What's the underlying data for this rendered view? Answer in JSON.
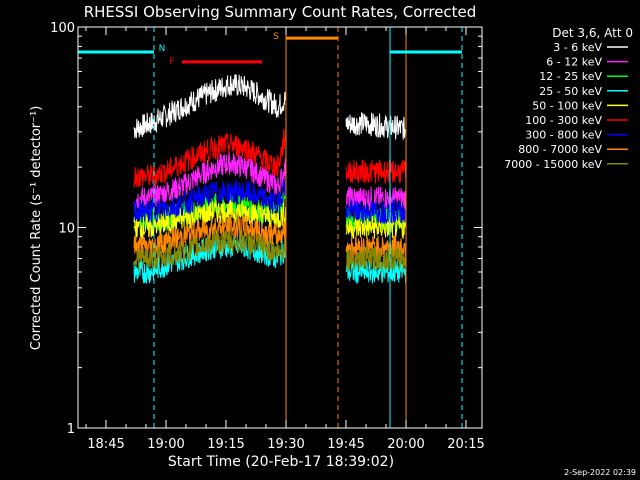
{
  "chart_data": {
    "type": "line",
    "title": "RHESSI Observing Summary Count Rates, Corrected",
    "ylabel": "Corrected Count Rate (s⁻¹ detector⁻¹)",
    "xlabel": "Start Time (20-Feb-17 18:39:02)",
    "y_scale": "log",
    "ylim": [
      1,
      100
    ],
    "xlim": [
      "18:38",
      "20:19"
    ],
    "ytick_labels": [
      "1",
      "10",
      "100"
    ],
    "xtick_labels": [
      "18:45",
      "19:00",
      "19:15",
      "19:30",
      "19:45",
      "20:00",
      "20:15"
    ],
    "legend_title": "Det 3,6, Att 0",
    "legend_position": "top-right",
    "footer": "2-Sep-2022 02:39",
    "data_segments": [
      [
        "18:52",
        "19:30"
      ],
      [
        "19:45",
        "20:00"
      ]
    ],
    "series": [
      {
        "name": "3 - 6 keV",
        "color": "#ffffff",
        "x": [
          "18:52",
          "18:56",
          "19:00",
          "19:04",
          "19:08",
          "19:12",
          "19:16",
          "19:20",
          "19:24",
          "19:28",
          "19:30",
          "19:45",
          "19:50",
          "19:55",
          "20:00"
        ],
        "values": [
          31,
          33,
          36,
          40,
          44,
          48,
          52,
          50,
          45,
          40,
          44,
          33,
          33,
          32,
          31
        ]
      },
      {
        "name": "6 - 12 keV",
        "color": "#ff22ff",
        "x": [
          "18:52",
          "18:56",
          "19:00",
          "19:04",
          "19:08",
          "19:12",
          "19:16",
          "19:20",
          "19:24",
          "19:28",
          "19:30",
          "19:45",
          "19:50",
          "19:55",
          "20:00"
        ],
        "values": [
          14,
          14,
          15,
          16,
          18,
          20,
          21,
          20,
          18,
          16,
          20,
          14,
          14,
          14,
          14
        ]
      },
      {
        "name": "12 - 25 keV",
        "color": "#00ff00",
        "x": [
          "18:52",
          "18:56",
          "19:00",
          "19:04",
          "19:08",
          "19:12",
          "19:16",
          "19:20",
          "19:24",
          "19:28",
          "19:30",
          "19:45",
          "19:50",
          "19:55",
          "20:00"
        ],
        "values": [
          11,
          11,
          11,
          12,
          12,
          13,
          13,
          13,
          12,
          12,
          15,
          11,
          11,
          11,
          11
        ]
      },
      {
        "name": "25 - 50 keV",
        "color": "#00ffff",
        "x": [
          "18:52",
          "18:56",
          "19:00",
          "19:04",
          "19:08",
          "19:12",
          "19:16",
          "19:20",
          "19:24",
          "19:28",
          "19:30",
          "19:45",
          "19:50",
          "19:55",
          "20:00"
        ],
        "values": [
          6,
          6,
          6.5,
          7,
          7.5,
          8,
          8,
          8,
          7.5,
          7,
          8,
          6,
          6,
          6,
          6
        ]
      },
      {
        "name": "50 - 100 keV",
        "color": "#ffff00",
        "x": [
          "18:52",
          "18:56",
          "19:00",
          "19:04",
          "19:08",
          "19:12",
          "19:16",
          "19:20",
          "19:24",
          "19:28",
          "19:30",
          "19:45",
          "19:50",
          "19:55",
          "20:00"
        ],
        "values": [
          10,
          10,
          10.5,
          11,
          11.5,
          12,
          12,
          12,
          11.5,
          11,
          12,
          10,
          10,
          10,
          10
        ]
      },
      {
        "name": "100 - 300 keV",
        "color": "#ff0000",
        "x": [
          "18:52",
          "18:56",
          "19:00",
          "19:04",
          "19:08",
          "19:12",
          "19:16",
          "19:20",
          "19:24",
          "19:28",
          "19:30",
          "19:45",
          "19:50",
          "19:55",
          "20:00"
        ],
        "values": [
          18,
          18,
          19,
          21,
          23,
          25,
          26,
          25,
          22,
          20,
          30,
          19,
          19,
          19,
          19
        ]
      },
      {
        "name": "300 - 800 keV",
        "color": "#0000ff",
        "x": [
          "18:52",
          "18:56",
          "19:00",
          "19:04",
          "19:08",
          "19:12",
          "19:16",
          "19:20",
          "19:24",
          "19:28",
          "19:30",
          "19:45",
          "19:50",
          "19:55",
          "20:00"
        ],
        "values": [
          12,
          12,
          12.5,
          13,
          14,
          15,
          15,
          15,
          14,
          13,
          17,
          12,
          12,
          12,
          12
        ]
      },
      {
        "name": "800 - 7000 keV",
        "color": "#ff8800",
        "x": [
          "18:52",
          "18:56",
          "19:00",
          "19:04",
          "19:08",
          "19:12",
          "19:16",
          "19:20",
          "19:24",
          "19:28",
          "19:30",
          "19:45",
          "19:50",
          "19:55",
          "20:00"
        ],
        "values": [
          8,
          8,
          8.5,
          9,
          9.5,
          10,
          10,
          10,
          9.5,
          9,
          10,
          8,
          8,
          8,
          8
        ]
      },
      {
        "name": "7000 - 15000 keV",
        "color": "#888800",
        "x": [
          "18:52",
          "18:56",
          "19:00",
          "19:04",
          "19:08",
          "19:12",
          "19:16",
          "19:20",
          "19:24",
          "19:28",
          "19:30",
          "19:45",
          "19:50",
          "19:55",
          "20:00"
        ],
        "values": [
          7,
          7,
          7.2,
          7.5,
          8,
          8.5,
          8.5,
          8.5,
          8,
          7.5,
          8,
          7,
          7,
          7,
          7
        ]
      }
    ],
    "flags": [
      {
        "label": "N",
        "color": "#00ffff",
        "start": "18:38",
        "end": "18:57",
        "level": 75
      },
      {
        "label": "",
        "color": "#00ffff",
        "start": "19:56",
        "end": "20:14",
        "level": 75
      },
      {
        "label": "F",
        "color": "#ff0000",
        "start": "19:04",
        "end": "19:24",
        "level": 67
      },
      {
        "label": "S",
        "color": "#ff8800",
        "start": "19:30",
        "end": "19:43",
        "level": 88
      }
    ],
    "vertical_lines": [
      {
        "x": "18:38",
        "color": "#00ffff",
        "style": "solid"
      },
      {
        "x": "18:57",
        "color": "#00ffff",
        "style": "dashed"
      },
      {
        "x": "19:30",
        "color": "#ff8800",
        "style": "solid"
      },
      {
        "x": "19:43",
        "color": "#ff8800",
        "style": "dashed"
      },
      {
        "x": "19:56",
        "color": "#00ffff",
        "style": "solid"
      },
      {
        "x": "20:00",
        "color": "#ff8800",
        "style": "solid"
      },
      {
        "x": "20:14",
        "color": "#00ffff",
        "style": "dashed"
      }
    ]
  }
}
